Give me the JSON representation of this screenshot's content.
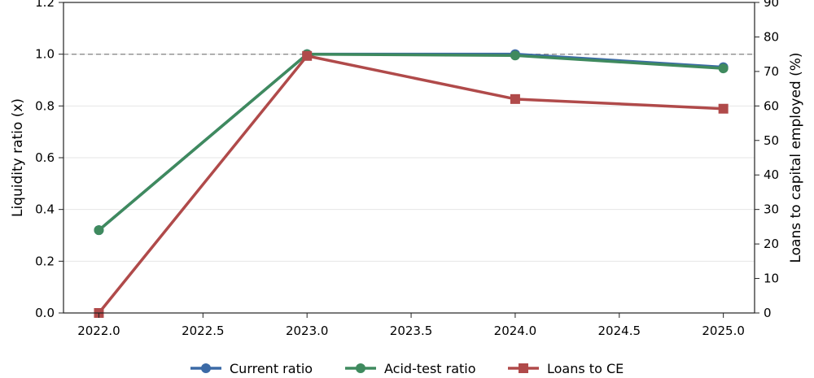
{
  "chart_data": {
    "type": "line",
    "x": [
      2022.0,
      2023.0,
      2024.0,
      2025.0
    ],
    "xlim": [
      2021.83,
      2025.15
    ],
    "xticks": [
      2022.0,
      2022.5,
      2023.0,
      2023.5,
      2024.0,
      2024.5,
      2025.0
    ],
    "xtick_labels": [
      "2022.0",
      "2022.5",
      "2023.0",
      "2023.5",
      "2024.0",
      "2024.5",
      "2025.0"
    ],
    "ylabel": "Liquidity ratio (x)",
    "ylim": [
      0.0,
      1.2
    ],
    "yticks": [
      0.0,
      0.2,
      0.4,
      0.6,
      0.8,
      1.0,
      1.2
    ],
    "ytick_labels": [
      "0.0",
      "0.2",
      "0.4",
      "0.6",
      "0.8",
      "1.0",
      "1.2"
    ],
    "y2label": "Loans to capital employed (%)",
    "y2lim": [
      0,
      90
    ],
    "y2ticks": [
      0,
      10,
      20,
      30,
      40,
      50,
      60,
      70,
      80,
      90
    ],
    "y2tick_labels": [
      "0",
      "10",
      "20",
      "30",
      "40",
      "50",
      "60",
      "70",
      "80",
      "90"
    ],
    "reference_line": 1.0,
    "grid": true,
    "legend_position": "bottom-center",
    "series": [
      {
        "name": "Current ratio",
        "axis": "left",
        "color": "#3b6aa6",
        "marker": "circle",
        "values": [
          0.32,
          1.0,
          1.0,
          0.95
        ]
      },
      {
        "name": "Acid-test ratio",
        "axis": "left",
        "color": "#3f8a5e",
        "marker": "circle",
        "values": [
          0.32,
          1.0,
          0.995,
          0.945
        ]
      },
      {
        "name": "Loans to CE",
        "axis": "right",
        "color": "#b04a4a",
        "marker": "square",
        "values": [
          0.0,
          74.5,
          62.0,
          59.2
        ]
      }
    ]
  }
}
